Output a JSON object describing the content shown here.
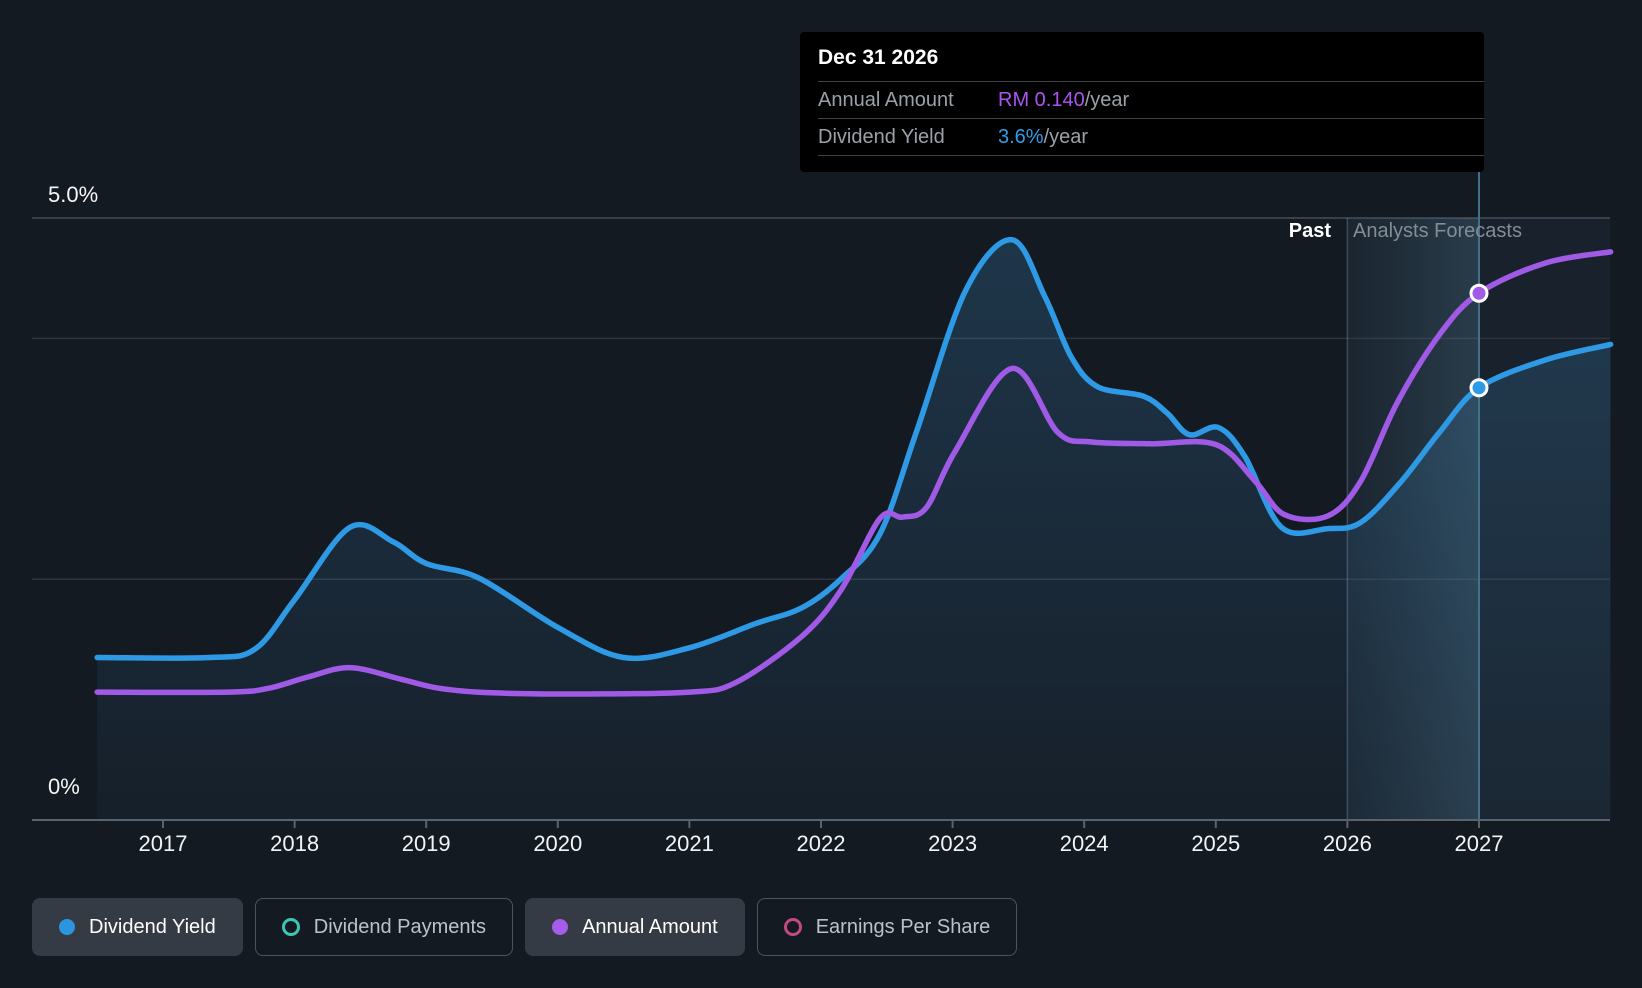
{
  "regions": {
    "past": "Past",
    "forecast": "Analysts Forecasts"
  },
  "tooltip": {
    "title": "Dec 31 2026",
    "rows": [
      {
        "label": "Annual Amount",
        "value": "RM 0.140",
        "suffix": "/year",
        "color": "#ab55ee"
      },
      {
        "label": "Dividend Yield",
        "value": "3.6%",
        "suffix": "/year",
        "color": "#2f9de8"
      }
    ]
  },
  "legend": {
    "items": [
      {
        "label": "Dividend Yield",
        "swatch": "filled",
        "color": "#2b96dd",
        "active": true
      },
      {
        "label": "Dividend Payments",
        "swatch": "ring",
        "color": "#3dc7b2",
        "active": false
      },
      {
        "label": "Annual Amount",
        "swatch": "filled",
        "color": "#a55ce8",
        "active": true
      },
      {
        "label": "Earnings Per Share",
        "swatch": "ring",
        "color": "#c24a82",
        "active": false
      }
    ]
  },
  "colors": {
    "background": "#141a22",
    "tooltip_bg": "#000000",
    "yield_line": "#2e9ae5",
    "amount_line": "#a15ae6",
    "grid_top": "#454c55",
    "grid": "#2d343d",
    "axis": "#5a626b",
    "hover_line": "#44708a",
    "divider": "rgba(170,205,235,0.25)",
    "forecast_fill": "rgba(130,195,235,0.05)",
    "area_top": "rgba(70,165,235,0.20)",
    "area_bottom": "rgba(70,165,235,0.04)",
    "band_from": "rgba(115,185,225,0.02)",
    "band_to": "rgba(125,195,235,0.16)"
  },
  "chart_data": {
    "type": "line",
    "title": "Dividend history and forecast",
    "x_domain": [
      2016.5,
      2028.05
    ],
    "x_tick_years": [
      2017,
      2018,
      2019,
      2020,
      2021,
      2022,
      2023,
      2024,
      2025,
      2026,
      2027
    ],
    "y_axis": {
      "label_top": "5.0%",
      "label_zero": "0%",
      "ylim": [
        0,
        5
      ],
      "gridlines_pct": [
        5,
        4,
        2
      ]
    },
    "amount_axis": {
      "unit": "RM",
      "ylim": [
        0,
        0.16
      ]
    },
    "past_until": 2026.0,
    "hover_x": 2027.0,
    "legend_position": "bottom",
    "series": [
      {
        "name": "Dividend Yield",
        "unit": "%",
        "area": true,
        "points": [
          [
            2016.5,
            1.35
          ],
          [
            2017.35,
            1.35
          ],
          [
            2017.7,
            1.42
          ],
          [
            2018.0,
            1.83
          ],
          [
            2018.42,
            2.43
          ],
          [
            2018.75,
            2.31
          ],
          [
            2019.0,
            2.13
          ],
          [
            2019.4,
            2.01
          ],
          [
            2020.0,
            1.6
          ],
          [
            2020.5,
            1.35
          ],
          [
            2021.0,
            1.43
          ],
          [
            2021.5,
            1.63
          ],
          [
            2021.85,
            1.76
          ],
          [
            2022.15,
            2.0
          ],
          [
            2022.45,
            2.38
          ],
          [
            2022.73,
            3.24
          ],
          [
            2023.1,
            4.4
          ],
          [
            2023.45,
            4.82
          ],
          [
            2023.7,
            4.35
          ],
          [
            2023.9,
            3.85
          ],
          [
            2024.1,
            3.6
          ],
          [
            2024.45,
            3.52
          ],
          [
            2024.63,
            3.38
          ],
          [
            2024.8,
            3.2
          ],
          [
            2025.02,
            3.26
          ],
          [
            2025.22,
            3.02
          ],
          [
            2025.5,
            2.43
          ],
          [
            2025.85,
            2.42
          ],
          [
            2026.1,
            2.47
          ],
          [
            2026.4,
            2.8
          ],
          [
            2026.7,
            3.22
          ],
          [
            2027.0,
            3.59
          ],
          [
            2027.5,
            3.82
          ],
          [
            2028.0,
            3.95
          ]
        ]
      },
      {
        "name": "Annual Amount",
        "unit": "RM",
        "area": false,
        "points": [
          [
            2016.5,
            0.034
          ],
          [
            2017.5,
            0.034
          ],
          [
            2017.8,
            0.035
          ],
          [
            2018.1,
            0.038
          ],
          [
            2018.42,
            0.0405
          ],
          [
            2018.8,
            0.0375
          ],
          [
            2019.1,
            0.035
          ],
          [
            2019.5,
            0.0338
          ],
          [
            2020.2,
            0.0335
          ],
          [
            2021.0,
            0.034
          ],
          [
            2021.35,
            0.0365
          ],
          [
            2021.85,
            0.0487
          ],
          [
            2022.15,
            0.061
          ],
          [
            2022.45,
            0.0802
          ],
          [
            2022.62,
            0.0805
          ],
          [
            2022.8,
            0.083
          ],
          [
            2023.02,
            0.098
          ],
          [
            2023.45,
            0.12
          ],
          [
            2023.8,
            0.103
          ],
          [
            2024.05,
            0.1005
          ],
          [
            2024.5,
            0.1
          ],
          [
            2025.0,
            0.0998
          ],
          [
            2025.3,
            0.09
          ],
          [
            2025.52,
            0.0812
          ],
          [
            2025.85,
            0.0808
          ],
          [
            2026.1,
            0.09
          ],
          [
            2026.38,
            0.111
          ],
          [
            2026.7,
            0.129
          ],
          [
            2027.0,
            0.14
          ],
          [
            2027.5,
            0.148
          ],
          [
            2028.0,
            0.151
          ]
        ]
      }
    ],
    "markers": [
      {
        "series": "Annual Amount",
        "x": 2027.0,
        "value": 0.14
      },
      {
        "series": "Dividend Yield",
        "x": 2027.0,
        "value": 3.59
      }
    ]
  }
}
